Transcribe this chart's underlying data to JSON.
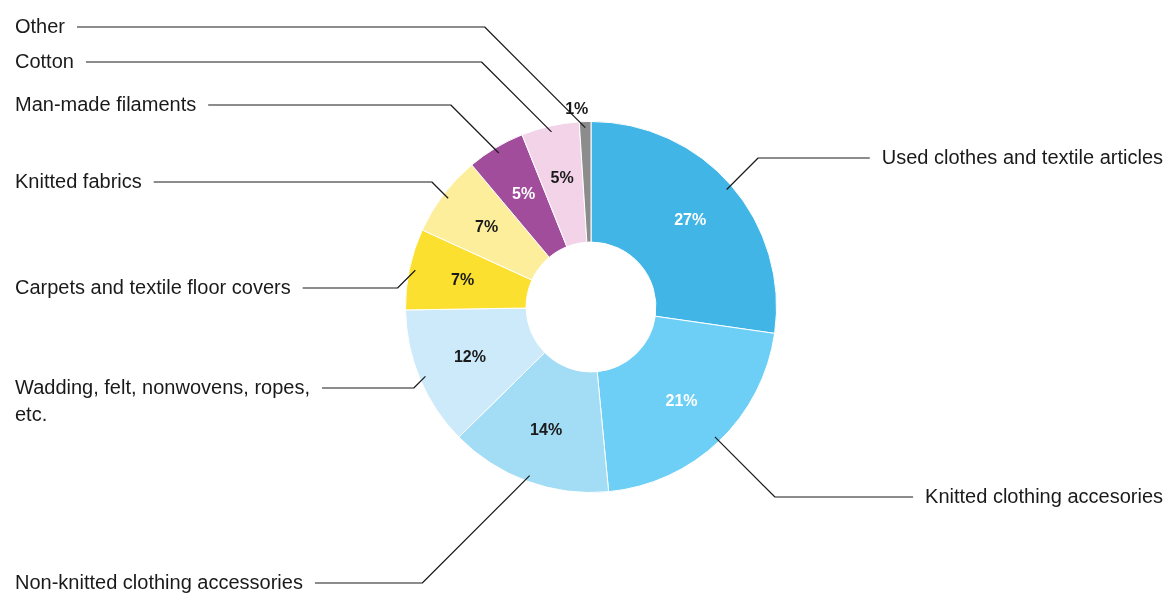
{
  "chart_data": {
    "type": "donut",
    "categories": [
      "Used clothes and textile articles",
      "Knitted clothing accesories",
      "Non-knitted clothing accessories",
      "Wadding, felt, nonwovens, ropes, etc.",
      "Carpets and textile floor covers",
      "Knitted fabrics",
      "Man-made filaments",
      "Cotton",
      "Other"
    ],
    "values": [
      27,
      21,
      14,
      12,
      7,
      7,
      5,
      5,
      1
    ],
    "colors": [
      "#41b6e6",
      "#6dcff6",
      "#a3dcf5",
      "#cceaf9",
      "#fbe02f",
      "#fdee9c",
      "#a24d9c",
      "#f2d3e8",
      "#8c8c8c"
    ],
    "value_labels": [
      "27%",
      "21%",
      "14%",
      "12%",
      "7%",
      "7%",
      "5%",
      "5%",
      "1%"
    ]
  }
}
